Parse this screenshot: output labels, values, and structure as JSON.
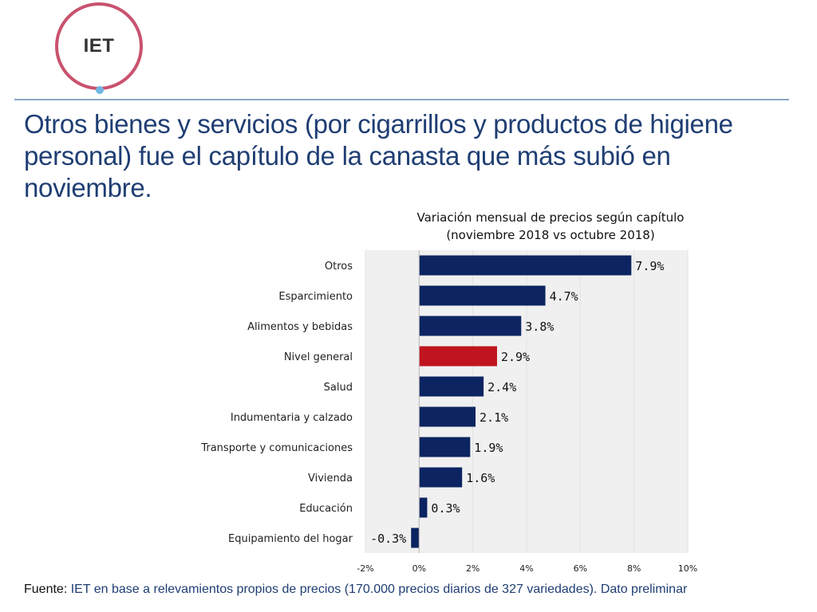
{
  "logo": {
    "text": "IET"
  },
  "headline": "Otros bienes y servicios (por cigarrillos y productos de higiene personal) fue el capítulo de la canasta que más subió en noviembre.",
  "source": {
    "label": "Fuente:",
    "text": "IET en base a relevamientos propios de precios (170.000 precios diarios de 327 variedades). Dato preliminar"
  },
  "colors": {
    "bar": "#0c2461",
    "highlight": "#c0141e",
    "plot_bg": "#f0f0f0",
    "grid": "#ffffff",
    "headline": "#1f3e73"
  },
  "chart_data": {
    "type": "bar",
    "orientation": "horizontal",
    "title_line1": "Variación mensual de precios según capítulo",
    "title_line2": "(noviembre 2018 vs octubre 2018)",
    "categories": [
      "Otros",
      "Esparcimiento",
      "Alimentos y bebidas",
      "Nivel general",
      "Salud",
      "Indumentaria y calzado",
      "Transporte y comunicaciones",
      "Vivienda",
      "Educación",
      "Equipamiento del hogar"
    ],
    "values": [
      7.9,
      4.7,
      3.8,
      2.9,
      2.4,
      2.1,
      1.9,
      1.6,
      0.3,
      -0.3
    ],
    "value_labels": [
      "7.9%",
      "4.7%",
      "3.8%",
      "2.9%",
      "2.4%",
      "2.1%",
      "1.9%",
      "1.6%",
      "0.3%",
      "-0.3%"
    ],
    "highlight_category": "Nivel general",
    "xlim": [
      -2,
      10
    ],
    "x_ticks": [
      -2,
      0,
      2,
      4,
      6,
      8,
      10
    ],
    "x_tick_labels": [
      "-2%",
      "0%",
      "2%",
      "4%",
      "6%",
      "8%",
      "10%"
    ],
    "xlabel": "",
    "ylabel": "",
    "grid": true
  }
}
